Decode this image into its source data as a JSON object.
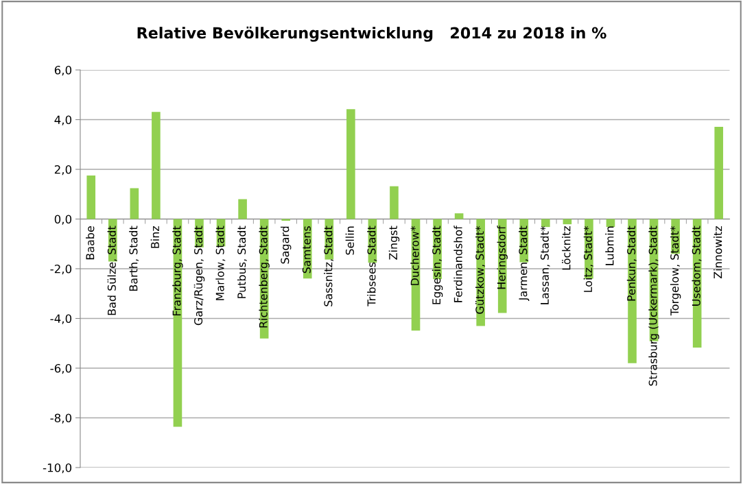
{
  "chart_data": {
    "type": "bar",
    "title": "Relative Bevölkerungsentwicklung   2014 zu 2018 in %",
    "categories": [
      "Baabe",
      "Bad Sülze, Stadt",
      "Barth, Stadt",
      "Binz",
      "Franzburg, Stadt",
      "Garz/Rügen, Stadt",
      "Marlow, Stadt",
      "Putbus, Stadt",
      "Richtenberg, Stadt",
      "Sagard",
      "Samtens",
      "Sassnitz, Stadt",
      "Sellin",
      "Tribsees, Stadt",
      "Zingst",
      "Ducherow*",
      "Eggesin, Stadt",
      "Ferdinandshof",
      "Gützkow, Stadt*",
      "Heringsdorf",
      "Jarmen, Stadt",
      "Lassan, Stadt*",
      "Löcknitz",
      "Loitz, Stadt*",
      "Lubmin",
      "Penkun, Stadt",
      "Strasburg (Uckermark), Stadt",
      "Torgelow, Stadt*",
      "Usedom, Stadt",
      "Zinnowitz"
    ],
    "values": [
      1.75,
      -1.71,
      1.24,
      4.31,
      -8.36,
      -1.14,
      -1.1,
      0.8,
      -4.81,
      -0.07,
      -2.39,
      -1.63,
      4.42,
      -1.76,
      1.32,
      -4.49,
      -2.42,
      0.23,
      -4.3,
      -3.78,
      -1.74,
      -0.32,
      -0.21,
      -2.4,
      -0.32,
      -5.8,
      -4.92,
      -1.4,
      -5.17,
      3.71
    ],
    "color": "#92d050",
    "ylim": [
      -10,
      6
    ],
    "yticks": [
      {
        "value": -10,
        "label": "-10,0"
      },
      {
        "value": -8,
        "label": "-8,0"
      },
      {
        "value": -6,
        "label": "-6,0"
      },
      {
        "value": -4,
        "label": "-4,0"
      },
      {
        "value": -2,
        "label": "-2,0"
      },
      {
        "value": 0,
        "label": "0,0"
      },
      {
        "value": 2,
        "label": "2,0"
      },
      {
        "value": 4,
        "label": "4,0"
      },
      {
        "value": 6,
        "label": "6,0"
      }
    ],
    "grid": "y"
  }
}
